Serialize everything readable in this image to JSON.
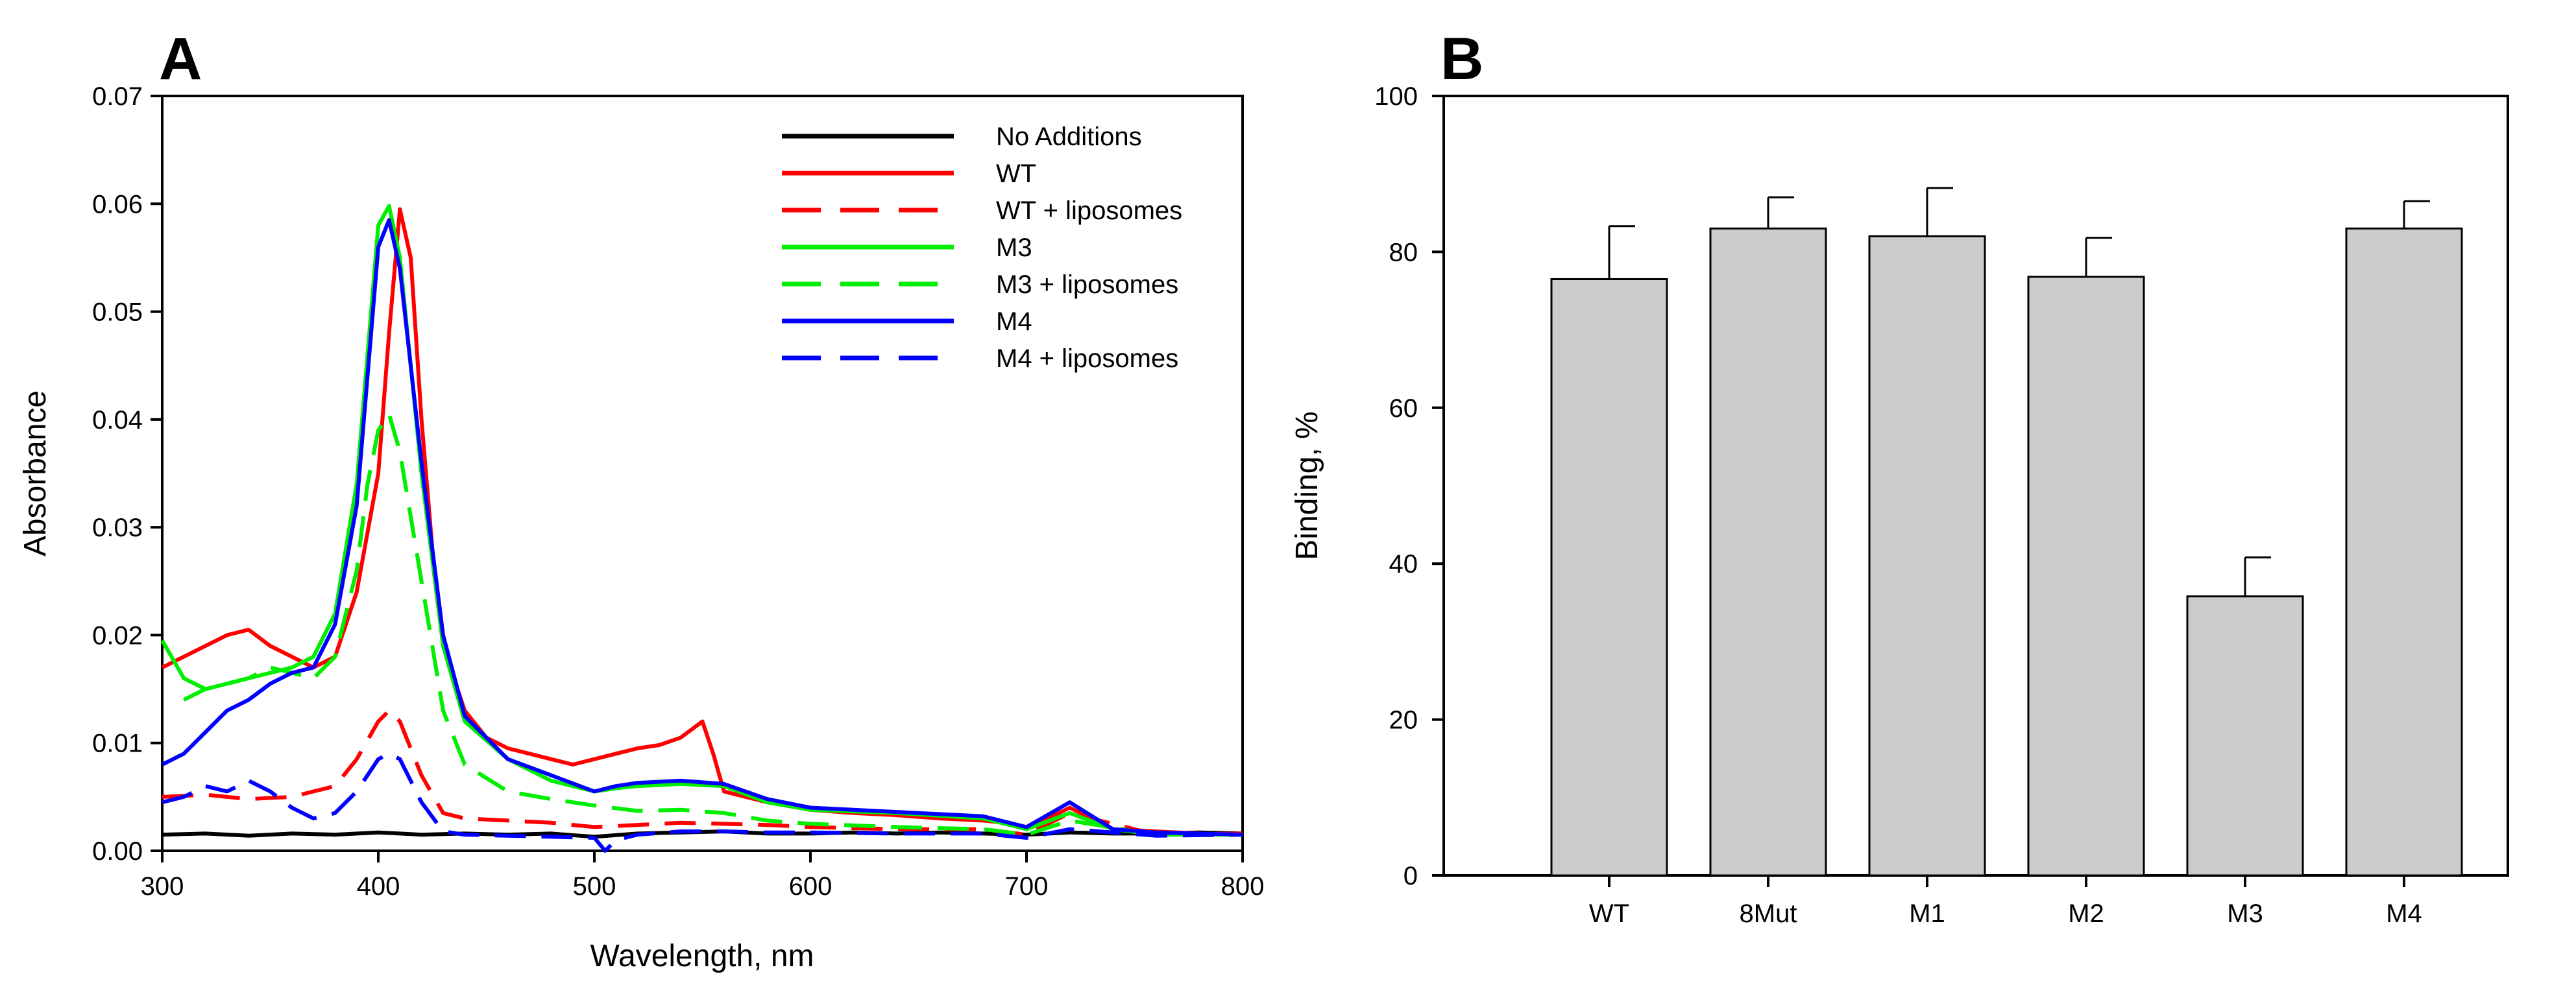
{
  "panels": [
    {
      "label": "A"
    },
    {
      "label": "B"
    }
  ],
  "chart_data": [
    {
      "type": "line",
      "panel": "A",
      "xlabel": "Wavelength, nm",
      "ylabel": "Absorbance",
      "xlim": [
        300,
        800
      ],
      "ylim": [
        0,
        0.07
      ],
      "xticks": [
        300,
        400,
        500,
        600,
        700,
        800
      ],
      "yticks": [
        0.0,
        0.01,
        0.02,
        0.03,
        0.04,
        0.05,
        0.06,
        0.07
      ],
      "xtick_labels": [
        "300",
        "400",
        "500",
        "600",
        "700",
        "800"
      ],
      "ytick_labels": [
        "0.00",
        "0.01",
        "0.02",
        "0.03",
        "0.04",
        "0.05",
        "0.06",
        "0.07"
      ],
      "legend_position": "top-right",
      "series": [
        {
          "name": "No Additions",
          "color": "#000000",
          "dash": "solid",
          "x": [
            300,
            320,
            340,
            360,
            380,
            400,
            420,
            440,
            460,
            480,
            500,
            520,
            540,
            560,
            580,
            600,
            620,
            640,
            660,
            680,
            700,
            720,
            740,
            760,
            780,
            800
          ],
          "y": [
            0.0015,
            0.0016,
            0.0014,
            0.0016,
            0.0015,
            0.0017,
            0.0015,
            0.0016,
            0.0015,
            0.0016,
            0.0013,
            0.0016,
            0.0017,
            0.0018,
            0.0016,
            0.0016,
            0.0017,
            0.0016,
            0.0017,
            0.0016,
            0.0015,
            0.0017,
            0.0016,
            0.0016,
            0.0017,
            0.0016
          ]
        },
        {
          "name": "WT",
          "color": "#ff0000",
          "dash": "solid",
          "x": [
            300,
            310,
            320,
            330,
            340,
            350,
            360,
            370,
            380,
            390,
            400,
            405,
            410,
            415,
            420,
            425,
            430,
            440,
            450,
            460,
            470,
            480,
            490,
            500,
            510,
            520,
            530,
            540,
            550,
            555,
            560,
            580,
            600,
            620,
            640,
            660,
            680,
            690,
            700,
            710,
            720,
            740,
            760,
            780,
            800
          ],
          "y": [
            0.017,
            0.018,
            0.019,
            0.02,
            0.0205,
            0.019,
            0.018,
            0.017,
            0.018,
            0.024,
            0.035,
            0.048,
            0.0595,
            0.055,
            0.04,
            0.028,
            0.019,
            0.013,
            0.0105,
            0.0095,
            0.009,
            0.0085,
            0.008,
            0.0085,
            0.009,
            0.0095,
            0.0098,
            0.0105,
            0.012,
            0.009,
            0.0055,
            0.0045,
            0.0038,
            0.0035,
            0.0033,
            0.003,
            0.0028,
            0.0026,
            0.002,
            0.003,
            0.004,
            0.002,
            0.0018,
            0.0016,
            0.0015
          ]
        },
        {
          "name": "WT + liposomes",
          "color": "#ff0000",
          "dash": "dashed",
          "x": [
            300,
            320,
            340,
            360,
            370,
            380,
            390,
            400,
            405,
            410,
            420,
            430,
            440,
            460,
            480,
            500,
            520,
            540,
            560,
            580,
            600,
            640,
            680,
            700,
            720,
            760,
            800
          ],
          "y": [
            0.005,
            0.0052,
            0.0048,
            0.005,
            0.0055,
            0.006,
            0.0085,
            0.012,
            0.013,
            0.012,
            0.007,
            0.0035,
            0.003,
            0.0028,
            0.0026,
            0.0022,
            0.0024,
            0.0026,
            0.0025,
            0.0024,
            0.0022,
            0.002,
            0.002,
            0.0015,
            0.0035,
            0.0015,
            0.0016
          ]
        },
        {
          "name": "M3",
          "color": "#00ee00",
          "dash": "solid",
          "x": [
            300,
            310,
            320,
            330,
            340,
            350,
            360,
            370,
            380,
            390,
            395,
            400,
            405,
            410,
            420,
            430,
            440,
            460,
            480,
            500,
            510,
            520,
            540,
            560,
            580,
            600,
            640,
            680,
            700,
            720,
            740,
            760,
            800
          ],
          "y": [
            0.0195,
            0.016,
            0.015,
            0.0155,
            0.016,
            0.0165,
            0.017,
            0.018,
            0.022,
            0.034,
            0.046,
            0.058,
            0.0598,
            0.055,
            0.035,
            0.019,
            0.012,
            0.0085,
            0.0065,
            0.0055,
            0.0058,
            0.006,
            0.0062,
            0.006,
            0.0045,
            0.0038,
            0.0035,
            0.003,
            0.002,
            0.0035,
            0.002,
            0.0015,
            0.0015
          ]
        },
        {
          "name": "M3 + liposomes",
          "color": "#00ee00",
          "dash": "dashed",
          "x": [
            310,
            320,
            330,
            340,
            350,
            360,
            370,
            380,
            390,
            395,
            400,
            405,
            410,
            420,
            430,
            440,
            460,
            480,
            500,
            520,
            540,
            560,
            580,
            600,
            640,
            680,
            700,
            720,
            760,
            800
          ],
          "y": [
            0.014,
            0.015,
            0.0155,
            0.016,
            0.017,
            0.0165,
            0.016,
            0.018,
            0.026,
            0.034,
            0.039,
            0.0405,
            0.037,
            0.025,
            0.013,
            0.008,
            0.0055,
            0.0048,
            0.0042,
            0.0037,
            0.0038,
            0.0035,
            0.0028,
            0.0025,
            0.0022,
            0.002,
            0.0015,
            0.0028,
            0.0015,
            0.0015
          ]
        },
        {
          "name": "M4",
          "color": "#0000ff",
          "dash": "solid",
          "x": [
            300,
            310,
            320,
            330,
            340,
            350,
            360,
            370,
            380,
            390,
            395,
            400,
            405,
            410,
            420,
            430,
            440,
            460,
            480,
            500,
            510,
            520,
            540,
            560,
            580,
            600,
            640,
            680,
            700,
            720,
            740,
            760,
            800
          ],
          "y": [
            0.008,
            0.009,
            0.011,
            0.013,
            0.014,
            0.0155,
            0.0165,
            0.017,
            0.021,
            0.032,
            0.044,
            0.056,
            0.0585,
            0.054,
            0.036,
            0.02,
            0.0125,
            0.0085,
            0.007,
            0.0055,
            0.006,
            0.0063,
            0.0065,
            0.0062,
            0.0048,
            0.004,
            0.0036,
            0.0032,
            0.0022,
            0.0045,
            0.002,
            0.0017,
            0.0015
          ]
        },
        {
          "name": "M4 + liposomes",
          "color": "#0000ff",
          "dash": "dashed",
          "x": [
            300,
            310,
            320,
            330,
            340,
            350,
            360,
            370,
            380,
            390,
            400,
            405,
            410,
            420,
            430,
            440,
            460,
            480,
            500,
            505,
            510,
            520,
            540,
            560,
            580,
            600,
            640,
            680,
            700,
            720,
            760,
            800
          ],
          "y": [
            0.0045,
            0.005,
            0.006,
            0.0055,
            0.0065,
            0.0055,
            0.004,
            0.003,
            0.0035,
            0.0055,
            0.0085,
            0.009,
            0.0085,
            0.0045,
            0.0018,
            0.0015,
            0.0014,
            0.0013,
            0.0012,
            0.0,
            0.001,
            0.0015,
            0.0018,
            0.0018,
            0.0017,
            0.0017,
            0.0016,
            0.0016,
            0.0012,
            0.002,
            0.0014,
            0.0015
          ]
        }
      ]
    },
    {
      "type": "bar",
      "panel": "B",
      "ylabel": "Binding, %",
      "xlabel": "",
      "ylim": [
        0,
        100
      ],
      "yticks": [
        0,
        20,
        40,
        60,
        80,
        100
      ],
      "ytick_labels": [
        "0",
        "20",
        "40",
        "60",
        "80",
        "100"
      ],
      "categories": [
        "WT",
        "8Mut",
        "M1",
        "M2",
        "M3",
        "M4"
      ],
      "values": [
        76.5,
        83,
        82,
        76.8,
        35.8,
        83
      ],
      "errors": [
        6.8,
        4,
        6.2,
        5,
        5,
        3.5
      ],
      "bar_color": "#cccccc"
    }
  ]
}
